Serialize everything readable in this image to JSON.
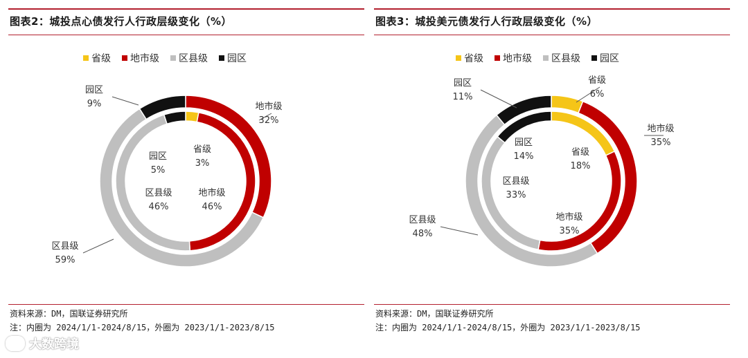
{
  "colors": {
    "province": "#f5c518",
    "city": "#c00000",
    "district": "#bfbfbf",
    "park": "#111111"
  },
  "legend_labels": [
    "省级",
    "地市级",
    "区县级",
    "园区"
  ],
  "footer": {
    "source": "资料来源：DM，国联证券研究所",
    "note": "注：内圈为 2024/1/1-2024/8/15，外圈为 2023/1/1-2023/8/15"
  },
  "watermark": "大数跨境",
  "chart_data": [
    {
      "type": "pie",
      "title": "图表2：城投点心债发行人行政层级变化（%）",
      "categories": [
        "省级",
        "地市级",
        "区县级",
        "园区"
      ],
      "series": [
        {
          "ring": "outer",
          "period": "2023/1/1-2023/8/15",
          "values": [
            0,
            32,
            59,
            9
          ]
        },
        {
          "ring": "inner",
          "period": "2024/1/1-2024/8/15",
          "values": [
            3,
            46,
            46,
            5
          ]
        }
      ],
      "labels": {
        "outer": [
          "",
          "32%",
          "59%",
          "9%"
        ],
        "inner": [
          "3%",
          "46%",
          "46%",
          "5%"
        ]
      }
    },
    {
      "type": "pie",
      "title": "图表3：城投美元债发行人行政层级变化（%）",
      "categories": [
        "省级",
        "地市级",
        "区县级",
        "园区"
      ],
      "series": [
        {
          "ring": "outer",
          "period": "2023/1/1-2023/8/15",
          "values": [
            6,
            35,
            48,
            11
          ]
        },
        {
          "ring": "inner",
          "period": "2024/1/1-2024/8/15",
          "values": [
            18,
            35,
            33,
            14
          ]
        }
      ],
      "labels": {
        "outer": [
          "6%",
          "35%",
          "48%",
          "11%"
        ],
        "inner": [
          "18%",
          "35%",
          "33%",
          "14%"
        ]
      }
    }
  ]
}
